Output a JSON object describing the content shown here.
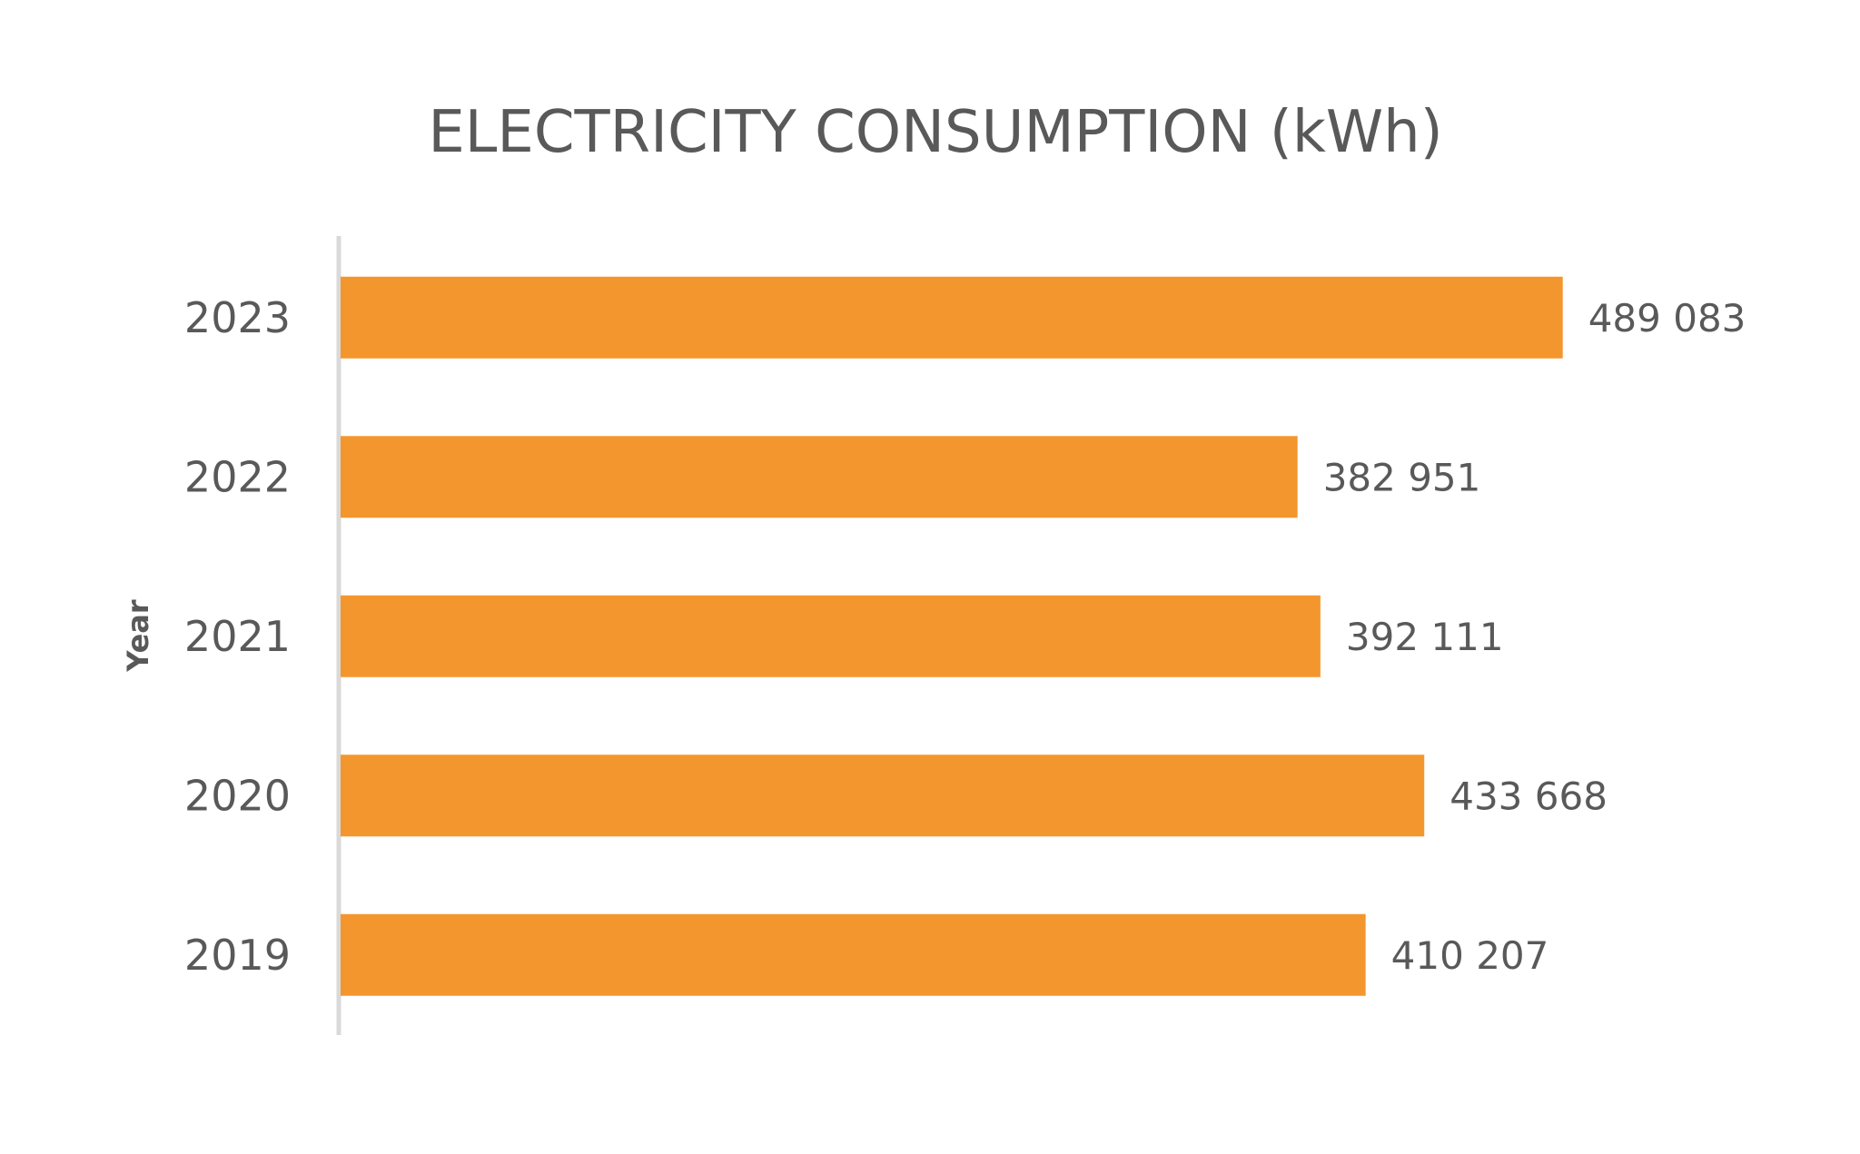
{
  "chart_data": {
    "type": "bar",
    "orientation": "horizontal",
    "title": "ELECTRICITY CONSUMPTION (kWh)",
    "ylabel": "Year",
    "xlabel": "",
    "categories": [
      "2023",
      "2022",
      "2021",
      "2020",
      "2019"
    ],
    "values": [
      489083,
      382951,
      392111,
      433668,
      410207
    ],
    "data_labels": [
      "489 083",
      "382 951",
      "392 111",
      "433 668",
      "410 207"
    ],
    "xlim": [
      0,
      500000
    ],
    "grid": false,
    "legend": "none",
    "colors": {
      "bar": "#F4962E",
      "text": "#595959",
      "axis": "#D9D9D9"
    }
  }
}
